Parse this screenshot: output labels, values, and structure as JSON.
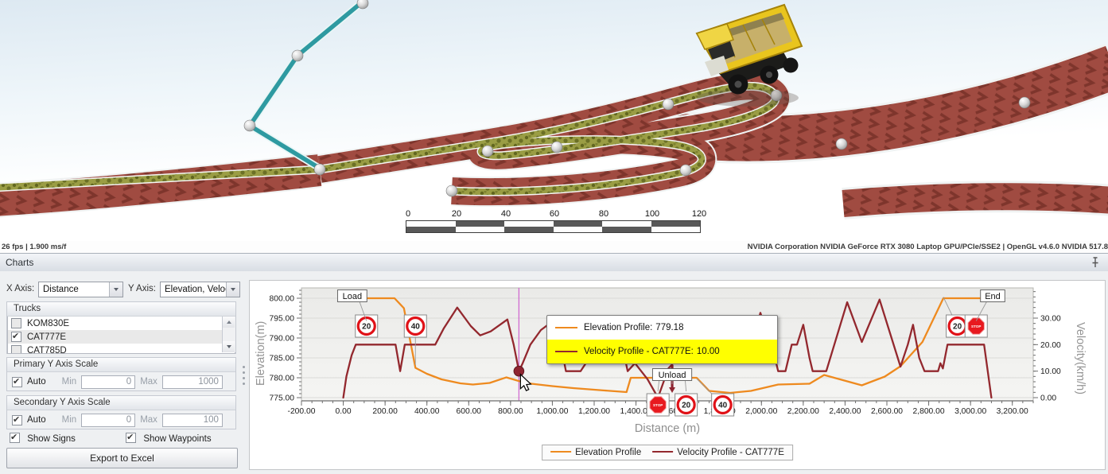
{
  "viewport": {
    "fps_text": "26 fps | 1.900 ms/f",
    "gpu_text": "NVIDIA Corporation NVIDIA GeForce RTX 3080 Laptop GPU/PCIe/SSE2 | OpenGL v4.6.0 NVIDIA 517.8",
    "scalebar": {
      "labels": [
        "0",
        "20",
        "40",
        "60",
        "80",
        "100",
        "120"
      ]
    }
  },
  "panel": {
    "title": "Charts",
    "x_axis_label": "X Axis:",
    "x_axis_value": "Distance",
    "y_axis_label": "Y Axis:",
    "y_axis_value": "Elevation, Veloc...",
    "trucks": {
      "header": "Trucks",
      "items": [
        {
          "label": "KOM830E",
          "checked": false
        },
        {
          "label": "CAT777E",
          "checked": true
        },
        {
          "label": "CAT785D",
          "checked": false
        }
      ]
    },
    "primary_scale": {
      "header": "Primary Y Axis Scale",
      "auto_label": "Auto",
      "auto_checked": true,
      "min_label": "Min",
      "min_value": "0",
      "max_label": "Max",
      "max_value": "1000"
    },
    "secondary_scale": {
      "header": "Secondary Y Axis Scale",
      "auto_label": "Auto",
      "auto_checked": true,
      "min_label": "Min",
      "min_value": "0",
      "max_label": "Max",
      "max_value": "100"
    },
    "show_signs_label": "Show Signs",
    "show_signs_checked": true,
    "show_waypoints_label": "Show Waypoints",
    "show_waypoints_checked": true,
    "export_button": "Export to Excel"
  },
  "chart_data": {
    "type": "line",
    "x_label": "Distance (m)",
    "y_left_label": "Elevation(m)",
    "y_right_label": "Velocity(km/h)",
    "x_range": [
      -200,
      3300
    ],
    "x_ticks": [
      -200,
      0,
      200,
      400,
      600,
      800,
      1000,
      1200,
      1400,
      1600,
      1800,
      2000,
      2200,
      2400,
      2600,
      2800,
      3000,
      3200
    ],
    "x_minor_step": 50,
    "y_left_range": [
      774.2,
      802.6
    ],
    "y_left_ticks": [
      775,
      780,
      785,
      790,
      795,
      800
    ],
    "y_right_ticks": [
      0,
      10,
      20,
      30
    ],
    "y_right_per_left": 1.5,
    "grid": true,
    "legend_position": "bottom",
    "series": [
      {
        "name": "Elevation Profile",
        "color": "#EE8A1F",
        "axis": "left",
        "points": [
          [
            0,
            800
          ],
          [
            245,
            800
          ],
          [
            290,
            797.5
          ],
          [
            345,
            782.5
          ],
          [
            400,
            781
          ],
          [
            470,
            779.6
          ],
          [
            560,
            778.6
          ],
          [
            620,
            778.3
          ],
          [
            700,
            778.7
          ],
          [
            780,
            780.1
          ],
          [
            840,
            779.18
          ],
          [
            900,
            778.5
          ],
          [
            1000,
            777.9
          ],
          [
            1100,
            777.4
          ],
          [
            1250,
            776.8
          ],
          [
            1355,
            776.4
          ],
          [
            1375,
            780
          ],
          [
            1690,
            780
          ],
          [
            1750,
            776.7
          ],
          [
            1850,
            776.2
          ],
          [
            1950,
            776.7
          ],
          [
            2080,
            778.3
          ],
          [
            2230,
            778.5
          ],
          [
            2300,
            780.7
          ],
          [
            2390,
            779.4
          ],
          [
            2480,
            778.1
          ],
          [
            2590,
            780.3
          ],
          [
            2665,
            782.9
          ],
          [
            2770,
            789
          ],
          [
            2870,
            800
          ],
          [
            3130,
            800
          ]
        ]
      },
      {
        "name": "Velocity Profile - CAT777E",
        "color": "#93282E",
        "axis": "right",
        "points": [
          [
            0,
            0
          ],
          [
            15,
            8
          ],
          [
            40,
            16
          ],
          [
            60,
            20
          ],
          [
            250,
            20
          ],
          [
            272,
            10
          ],
          [
            294,
            20
          ],
          [
            440,
            20
          ],
          [
            480,
            26
          ],
          [
            545,
            34
          ],
          [
            610,
            27
          ],
          [
            655,
            23.5
          ],
          [
            705,
            25
          ],
          [
            785,
            29.5
          ],
          [
            815,
            20
          ],
          [
            840,
            10
          ],
          [
            858,
            13
          ],
          [
            895,
            20
          ],
          [
            945,
            25.5
          ],
          [
            1005,
            29
          ],
          [
            1045,
            18
          ],
          [
            1065,
            10
          ],
          [
            1135,
            10
          ],
          [
            1185,
            16
          ],
          [
            1245,
            22
          ],
          [
            1315,
            27
          ],
          [
            1360,
            10
          ],
          [
            1395,
            13
          ],
          [
            1455,
            7
          ],
          [
            1505,
            0
          ],
          [
            1555,
            11
          ],
          [
            1625,
            17
          ],
          [
            1705,
            20
          ],
          [
            1795,
            20
          ],
          [
            1865,
            27
          ],
          [
            1910,
            25
          ],
          [
            1955,
            21
          ],
          [
            1995,
            32
          ],
          [
            2035,
            22
          ],
          [
            2052,
            20
          ],
          [
            2065,
            15
          ],
          [
            2080,
            10
          ],
          [
            2115,
            10
          ],
          [
            2145,
            20
          ],
          [
            2170,
            20
          ],
          [
            2200,
            27.5
          ],
          [
            2230,
            15
          ],
          [
            2245,
            10
          ],
          [
            2310,
            10
          ],
          [
            2410,
            36
          ],
          [
            2480,
            21
          ],
          [
            2565,
            37
          ],
          [
            2665,
            11.7
          ],
          [
            2700,
            20
          ],
          [
            2725,
            27.5
          ],
          [
            2755,
            15
          ],
          [
            2780,
            10
          ],
          [
            2845,
            10
          ],
          [
            2856,
            13
          ],
          [
            2868,
            11
          ],
          [
            2890,
            20
          ],
          [
            3065,
            20
          ],
          [
            3100,
            0
          ]
        ]
      }
    ],
    "signs": [
      {
        "kind": "speed",
        "value": "20",
        "d": 111,
        "lane": "top"
      },
      {
        "kind": "speed",
        "value": "40",
        "d": 345,
        "lane": "top",
        "leader": [
          345,
          783.2
        ]
      },
      {
        "kind": "stop",
        "d": 1505,
        "lane": "bottom"
      },
      {
        "kind": "speed",
        "value": "20",
        "d": 1640,
        "lane": "bottom"
      },
      {
        "kind": "speed",
        "value": "40",
        "d": 1815,
        "lane": "bottom",
        "leader": [
          1690,
          779.8
        ]
      },
      {
        "kind": "speed",
        "value": "20",
        "d": 2937,
        "lane": "top",
        "leader": [
          2870,
          800.3
        ]
      },
      {
        "kind": "stop",
        "d": 3027,
        "lane": "top"
      }
    ],
    "callouts": [
      {
        "label": "Load",
        "d": 43,
        "lane": "top",
        "leaders": [
          [
            30,
            800
          ],
          [
            111,
            794.3
          ]
        ]
      },
      {
        "label": "Unload",
        "d": 1573,
        "lane": "inner",
        "leaders": [
          [
            1505,
            776.6
          ],
          [
            1573,
            778.4
          ],
          [
            1640,
            776.6
          ]
        ]
      },
      {
        "label": "End",
        "d": 3106,
        "lane": "top",
        "leaders": [
          [
            3027,
            794.3
          ],
          [
            3130,
            800.3
          ]
        ]
      }
    ],
    "waypoint_marker": {
      "d": 1573,
      "from_e": 783.2,
      "to_e": 776.2
    },
    "crosshair": {
      "d": 840,
      "color": "#CF63CF"
    },
    "hover_marker": {
      "d": 840,
      "velocity": 10,
      "color": "#8E2430"
    },
    "tooltip": {
      "row1_label": "Elevation Profile:",
      "row1_value": "779.18",
      "row2_label": "Velocity Profile - CAT777E:",
      "row2_value": "10.00",
      "highlight_color": "#FFFF00"
    }
  }
}
